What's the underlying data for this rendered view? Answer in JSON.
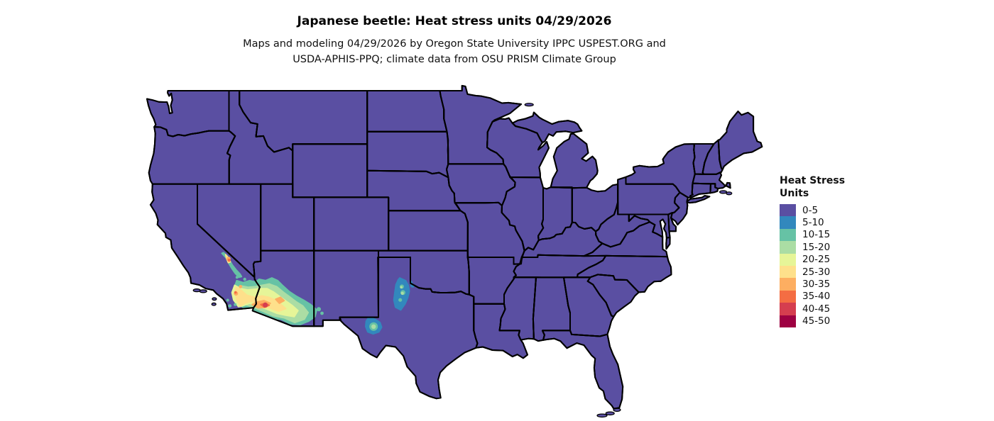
{
  "header": {
    "title": "Japanese beetle: Heat stress units 04/29/2026",
    "subtitle_line1": "Maps and modeling 04/29/2026 by Oregon State University IPPC USPEST.ORG and",
    "subtitle_line2": "USDA-APHIS-PPQ; climate data from OSU PRISM Climate Group"
  },
  "legend": {
    "title_line1": "Heat Stress",
    "title_line2": "Units",
    "items": [
      {
        "label": "0-5",
        "color": "#5a4fa2"
      },
      {
        "label": "5-10",
        "color": "#3288bd"
      },
      {
        "label": "10-15",
        "color": "#66c2a5"
      },
      {
        "label": "15-20",
        "color": "#abdda4"
      },
      {
        "label": "20-25",
        "color": "#e6f598"
      },
      {
        "label": "25-30",
        "color": "#fee08b"
      },
      {
        "label": "30-35",
        "color": "#fdae61"
      },
      {
        "label": "35-40",
        "color": "#f46d43"
      },
      {
        "label": "40-45",
        "color": "#d53e4f"
      },
      {
        "label": "45-50",
        "color": "#9e0142"
      }
    ]
  },
  "map": {
    "region": "contiguous United States",
    "base_class": "0-5",
    "border_color": "#000000",
    "background_color": "#ffffff",
    "hotspots": [
      {
        "region": "southeastern California and southwestern Arizona (Sonoran Desert)",
        "value_classes": [
          "5-10",
          "10-15",
          "15-20",
          "20-25",
          "25-30",
          "30-35",
          "35-40",
          "40-45"
        ]
      },
      {
        "region": "Death Valley / Mojave corridor, California",
        "value_classes": [
          "10-15",
          "25-30",
          "30-35",
          "35-40"
        ]
      },
      {
        "region": "north-central Texas rolling plains (into southwest Oklahoma)",
        "value_classes": [
          "5-10",
          "10-15",
          "15-20"
        ]
      },
      {
        "region": "west Texas (Big Bend / Presidio area)",
        "value_classes": [
          "5-10",
          "10-15",
          "15-20"
        ]
      },
      {
        "region": "remainder of contiguous United States",
        "value_classes": [
          "0-5"
        ]
      }
    ]
  }
}
